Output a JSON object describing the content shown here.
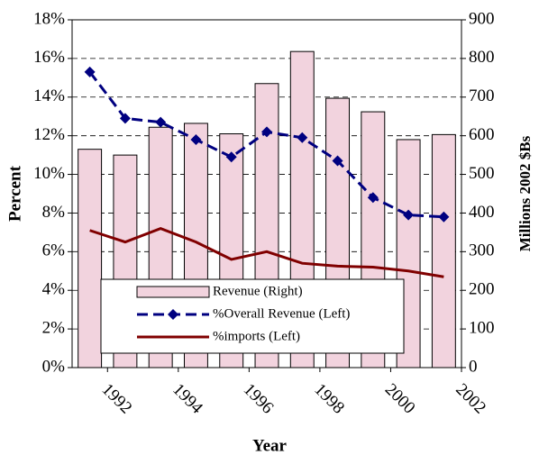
{
  "chart_data": {
    "type": "bar_line",
    "x_label": "Year",
    "y_label": "Percent",
    "y2_label": "Millions 2002 $Bs",
    "x": [
      1991.5,
      1992.5,
      1993.5,
      1994.5,
      1995.5,
      1996.5,
      1997.5,
      1998.5,
      1999.5,
      2000.5,
      2001.5
    ],
    "xlim": [
      1991,
      2002
    ],
    "xticks": [
      1992,
      1994,
      1996,
      1998,
      2000,
      2002
    ],
    "ylim": [
      0,
      18
    ],
    "yticks": [
      {
        "value": 0,
        "label": "0%"
      },
      {
        "value": 2,
        "label": "2%"
      },
      {
        "value": 4,
        "label": "4%"
      },
      {
        "value": 6,
        "label": "6%"
      },
      {
        "value": 8,
        "label": "8%"
      },
      {
        "value": 10,
        "label": "10%"
      },
      {
        "value": 12,
        "label": "12%"
      },
      {
        "value": 14,
        "label": "14%"
      },
      {
        "value": 16,
        "label": "16%"
      },
      {
        "value": 18,
        "label": "18%"
      }
    ],
    "y2lim": [
      0,
      900
    ],
    "y2ticks": [
      0,
      100,
      200,
      300,
      400,
      500,
      600,
      700,
      800,
      900
    ],
    "grid": true,
    "series": [
      {
        "name": "Revenue (Right)",
        "type": "bar",
        "axis": "y2",
        "color": "#f2d3de",
        "values": [
          565,
          550,
          622,
          632,
          605,
          735,
          818,
          697,
          662,
          590,
          603
        ]
      },
      {
        "name": "%Overall Revenue (Left)",
        "type": "line",
        "color": "#000080",
        "values": [
          15.3,
          12.9,
          12.7,
          11.8,
          10.9,
          12.2,
          11.9,
          10.7,
          8.8,
          7.9,
          7.8
        ]
      },
      {
        "name": "%imports (Left)",
        "type": "line",
        "color": "#800000",
        "values": [
          7.1,
          6.5,
          7.2,
          6.5,
          5.6,
          6.0,
          5.4,
          5.25,
          5.2,
          5.0,
          4.7
        ]
      }
    ]
  }
}
